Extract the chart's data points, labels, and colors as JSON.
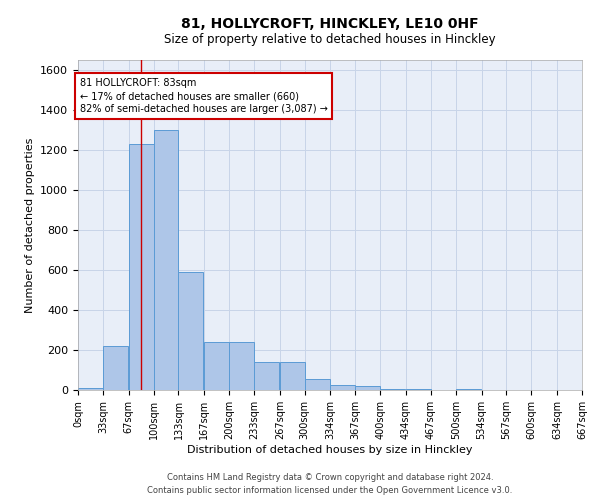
{
  "title_line1": "81, HOLLYCROFT, HINCKLEY, LE10 0HF",
  "title_line2": "Size of property relative to detached houses in Hinckley",
  "xlabel": "Distribution of detached houses by size in Hinckley",
  "ylabel": "Number of detached properties",
  "footer_line1": "Contains HM Land Registry data © Crown copyright and database right 2024.",
  "footer_line2": "Contains public sector information licensed under the Open Government Licence v3.0.",
  "bar_color": "#aec6e8",
  "bar_edge_color": "#5b9bd5",
  "grid_color": "#c8d4e8",
  "background_color": "#e8eef8",
  "annotation_box_color": "#cc0000",
  "annotation_text": "81 HOLLYCROFT: 83sqm\n← 17% of detached houses are smaller (660)\n82% of semi-detached houses are larger (3,087) →",
  "red_line_x": 83,
  "bin_edges": [
    0,
    33,
    67,
    100,
    133,
    167,
    200,
    233,
    267,
    300,
    334,
    367,
    400,
    434,
    467,
    500,
    534,
    567,
    600,
    634,
    667
  ],
  "bar_heights": [
    10,
    220,
    1230,
    1300,
    590,
    240,
    240,
    140,
    140,
    55,
    25,
    20,
    5,
    5,
    0,
    5,
    0,
    0,
    0,
    0
  ],
  "ylim": [
    0,
    1650
  ],
  "yticks": [
    0,
    200,
    400,
    600,
    800,
    1000,
    1200,
    1400,
    1600
  ],
  "tick_labels": [
    "0sqm",
    "33sqm",
    "67sqm",
    "100sqm",
    "133sqm",
    "167sqm",
    "200sqm",
    "233sqm",
    "267sqm",
    "300sqm",
    "334sqm",
    "367sqm",
    "400sqm",
    "434sqm",
    "467sqm",
    "500sqm",
    "534sqm",
    "567sqm",
    "600sqm",
    "634sqm",
    "667sqm"
  ]
}
